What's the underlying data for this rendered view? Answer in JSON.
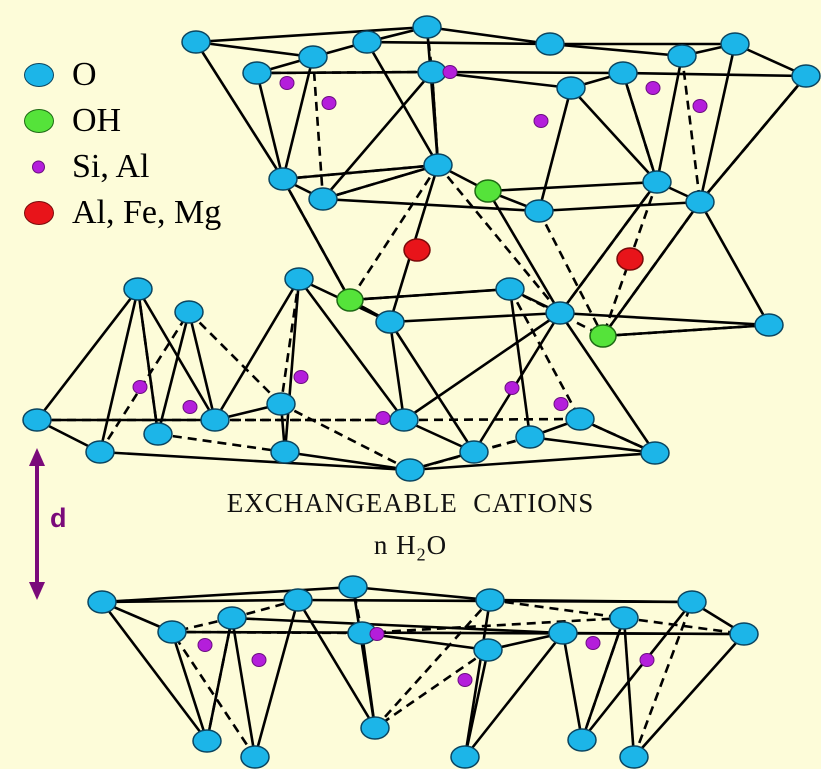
{
  "legend": {
    "items": [
      {
        "label": "O",
        "color": "#1cb5e8",
        "kind": "oxygen"
      },
      {
        "label": "OH",
        "color": "#55e33a",
        "kind": "hydroxyl"
      },
      {
        "label": "Si, Al",
        "color": "#b41edb",
        "kind": "tetrahedral-cation"
      },
      {
        "label": "Al, Fe, Mg",
        "color": "#e8141a",
        "kind": "octahedral-cation"
      }
    ]
  },
  "interlayer": {
    "line1": "EXCHANGEABLE  CATIONS",
    "line2_prefix": "n H",
    "line2_sub": "2",
    "line2_suffix": "O"
  },
  "spacing_label": "d",
  "colors": {
    "background": "#fdfcd9",
    "bond": "#000000",
    "spacing_arrow": "#7a0a7a"
  }
}
